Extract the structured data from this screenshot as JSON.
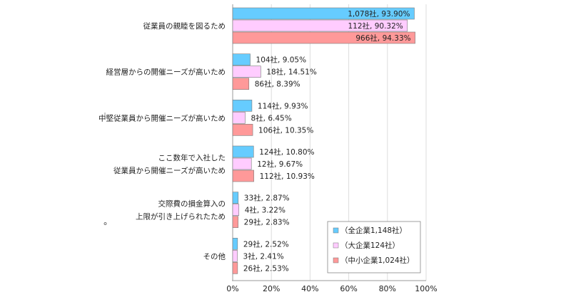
{
  "chart_data": {
    "type": "bar",
    "orientation": "horizontal",
    "categories": [
      [
        "従業員の親睦を図るため"
      ],
      [
        "経営層からの開催ニーズが高いため"
      ],
      [
        "中堅従業員から開催ニーズが高いため"
      ],
      [
        "ここ数年で入社した",
        "従業員から開催ニーズが高いため"
      ],
      [
        "交際費の損金算入の",
        "上限が引き上げられたため"
      ],
      [
        "その他"
      ]
    ],
    "series": [
      {
        "name": "（全企業1,148社）",
        "color": "#66ccff",
        "values": [
          93.9,
          9.05,
          9.93,
          10.8,
          2.87,
          2.52
        ],
        "labels": [
          "1,078社, 93.90%",
          "104社, 9.05%",
          "114社, 9.93%",
          "124社, 10.80%",
          "33社, 2.87%",
          "29社, 2.52%"
        ]
      },
      {
        "name": "（大企業124社）",
        "color": "#ffccff",
        "values": [
          90.32,
          14.51,
          6.45,
          9.67,
          3.22,
          2.41
        ],
        "labels": [
          "112社, 90.32%",
          "18社, 14.51%",
          "8社, 6.45%",
          "12社, 9.67%",
          "4社, 3.22%",
          "3社, 2.41%"
        ]
      },
      {
        "name": "（中小企業1,024社）",
        "color": "#ff9999",
        "values": [
          94.33,
          8.39,
          10.35,
          10.93,
          2.83,
          2.53
        ],
        "labels": [
          "966社, 94.33%",
          "86社, 8.39%",
          "106社, 10.35%",
          "112社, 10.93%",
          "29社, 2.83%",
          "26社, 2.53%"
        ]
      }
    ],
    "xlim": [
      0,
      100
    ],
    "xticks": [
      "0%",
      "20%",
      "40%",
      "60%",
      "80%",
      "100%"
    ],
    "grid": true,
    "legend_position": "bottom-right"
  }
}
